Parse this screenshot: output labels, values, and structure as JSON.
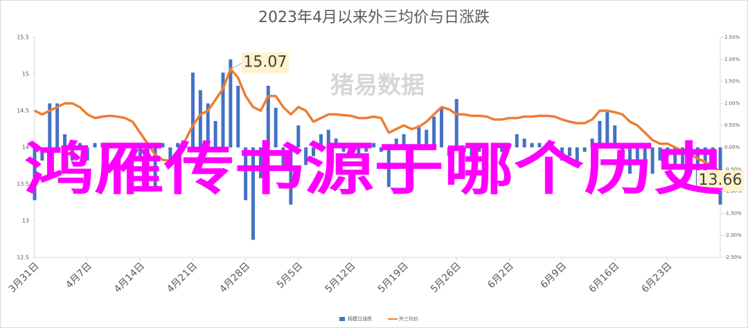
{
  "chart_data": {
    "type": "bar-line",
    "title": "2023年4月以来外三均价与日涨跌",
    "watermark": "猪易数据",
    "overlay_text": "鸿雁传书源于哪个历史",
    "overlay_color": "#ff00ff",
    "categories": [
      "3月31日",
      null,
      null,
      null,
      null,
      null,
      null,
      "4月7日",
      null,
      null,
      null,
      null,
      null,
      null,
      "4月14日",
      null,
      null,
      null,
      null,
      null,
      null,
      "4月21日",
      null,
      null,
      null,
      null,
      null,
      null,
      "4月28日",
      null,
      null,
      null,
      null,
      null,
      null,
      "5月5日",
      null,
      null,
      null,
      null,
      null,
      null,
      "5月12日",
      null,
      null,
      null,
      null,
      null,
      null,
      "5月19日",
      null,
      null,
      null,
      null,
      null,
      null,
      "5月26日",
      null,
      null,
      null,
      null,
      null,
      null,
      "6月2日",
      null,
      null,
      null,
      null,
      null,
      null,
      "6月9日",
      null,
      null,
      null,
      null,
      null,
      null,
      "6月16日",
      null,
      null,
      null,
      null,
      null,
      null,
      "6月23日",
      null,
      null,
      null,
      null,
      null,
      null,
      null
    ],
    "series": [
      {
        "name": "规模日涨跌",
        "color": "#4472c4",
        "axis": "y2",
        "kind": "bar",
        "values": [
          -1.2,
          -0.3,
          1.0,
          1.0,
          0.3,
          -0.3,
          0.1,
          -0.3,
          0.1,
          0.1,
          0.1,
          0.1,
          0.1,
          0.1,
          -0.3,
          -0.5,
          -0.9,
          0.1,
          -0.4,
          0.1,
          0.1,
          1.7,
          1.3,
          1.0,
          0.6,
          1.7,
          2.0,
          1.4,
          -1.2,
          -2.1,
          -0.7,
          1.4,
          0.9,
          -0.5,
          -1.3,
          0.5,
          -0.4,
          -0.2,
          0.3,
          0.4,
          0.2,
          -0.1,
          -0.1,
          -0.2,
          -0.1,
          0.1,
          -0.1,
          -0.9,
          0.2,
          0.3,
          -0.3,
          0.5,
          0.4,
          0.7,
          0.9,
          -0.2,
          1.1,
          -0.1,
          -0.2,
          -0.1,
          -0.1,
          -0.3,
          -0.1,
          0.1,
          0.3,
          0.2,
          0.1,
          0.1,
          0.1,
          -0.1,
          -0.3,
          -0.2,
          -0.4,
          -0.1,
          0.2,
          0.6,
          0.8,
          0.5,
          -0.2,
          -0.6,
          -0.4,
          -0.6,
          -0.6,
          -0.3,
          -0.2,
          -0.5,
          -0.4,
          -0.6,
          -0.9,
          -0.8,
          -0.3,
          -1.3
        ]
      },
      {
        "name": "外三均价",
        "color": "#ed7d31",
        "kind": "line",
        "values": [
          14.5,
          14.45,
          14.5,
          14.55,
          14.6,
          14.6,
          14.55,
          14.45,
          14.4,
          14.42,
          14.43,
          14.42,
          14.4,
          14.35,
          14.2,
          14.05,
          13.9,
          13.83,
          13.82,
          13.9,
          14.1,
          14.3,
          14.45,
          14.5,
          14.65,
          14.8,
          15.07,
          14.95,
          14.7,
          14.55,
          14.5,
          14.7,
          14.7,
          14.55,
          14.45,
          14.55,
          14.5,
          14.35,
          14.4,
          14.45,
          14.45,
          14.44,
          14.43,
          14.4,
          14.4,
          14.42,
          14.4,
          14.2,
          14.25,
          14.3,
          14.25,
          14.28,
          14.35,
          14.45,
          14.55,
          14.52,
          14.45,
          14.45,
          14.43,
          14.43,
          14.42,
          14.38,
          14.38,
          14.4,
          14.4,
          14.42,
          14.42,
          14.43,
          14.43,
          14.42,
          14.38,
          14.35,
          14.33,
          14.33,
          14.38,
          14.5,
          14.5,
          14.48,
          14.45,
          14.35,
          14.3,
          14.2,
          14.1,
          14.05,
          14.05,
          14.0,
          13.95,
          13.9,
          13.85,
          13.8,
          13.75,
          13.66
        ]
      }
    ],
    "annotations": [
      "15.07",
      "13.66"
    ],
    "ylim": [
      12.5,
      15.5
    ],
    "yticks": [
      12.5,
      13,
      13.5,
      14,
      14.5,
      15,
      15.5
    ],
    "y2lim": [
      -2.5,
      2.5
    ],
    "y2ticks": [
      {
        "value": -2.5,
        "label": "-2.50%"
      },
      {
        "value": -2.0,
        "label": "-2.00%"
      },
      {
        "value": -1.5,
        "label": "-1.50%"
      },
      {
        "value": -1.0,
        "label": "-1.00%"
      },
      {
        "value": -0.5,
        "label": "-0.50%"
      },
      {
        "value": 0,
        "label": "0.00%"
      },
      {
        "value": 0.5,
        "label": "0.50%"
      },
      {
        "value": 1.0,
        "label": "1.00%"
      },
      {
        "value": 1.5,
        "label": "1.50%"
      },
      {
        "value": 2.0,
        "label": "2.00%"
      },
      {
        "value": 2.5,
        "label": "2.50%"
      }
    ],
    "grid": false,
    "legend": "bottom"
  }
}
